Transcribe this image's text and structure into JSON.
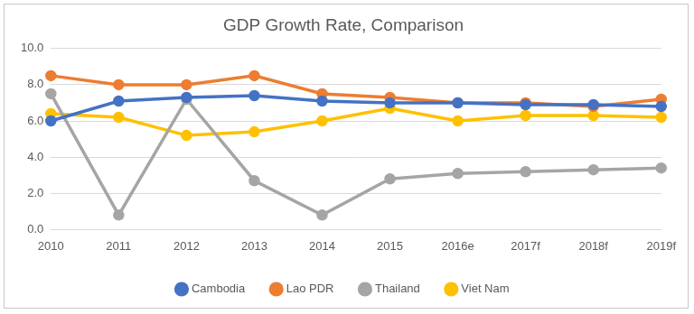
{
  "chart_data": {
    "type": "line",
    "title": "GDP Growth Rate, Comparison",
    "categories": [
      "2010",
      "2011",
      "2012",
      "2013",
      "2014",
      "2015",
      "2016e",
      "2017f",
      "2018f",
      "2019f"
    ],
    "series": [
      {
        "name": "Cambodia",
        "color": "#4472c4",
        "values": [
          6.0,
          7.1,
          7.3,
          7.4,
          7.1,
          7.0,
          7.0,
          6.9,
          6.9,
          6.8
        ]
      },
      {
        "name": "Lao PDR",
        "color": "#ed7d31",
        "values": [
          8.5,
          8.0,
          8.0,
          8.5,
          7.5,
          7.3,
          7.0,
          7.0,
          6.8,
          7.2
        ]
      },
      {
        "name": "Thailand",
        "color": "#a5a5a5",
        "values": [
          7.5,
          0.8,
          7.2,
          2.7,
          0.8,
          2.8,
          3.1,
          3.2,
          3.3,
          3.4
        ]
      },
      {
        "name": "Viet Nam",
        "color": "#ffc000",
        "values": [
          6.4,
          6.2,
          5.2,
          5.4,
          6.0,
          6.7,
          6.0,
          6.3,
          6.3,
          6.2
        ]
      }
    ],
    "ylim": [
      0,
      10
    ],
    "yticks": [
      {
        "value": 0,
        "label": "0.0"
      },
      {
        "value": 2,
        "label": "2.0"
      },
      {
        "value": 4,
        "label": "4.0"
      },
      {
        "value": 6,
        "label": "6.0"
      },
      {
        "value": 8,
        "label": "8.0"
      },
      {
        "value": 10,
        "label": "10.0"
      }
    ],
    "grid": true,
    "legend": "bottom",
    "marker": "circle"
  }
}
